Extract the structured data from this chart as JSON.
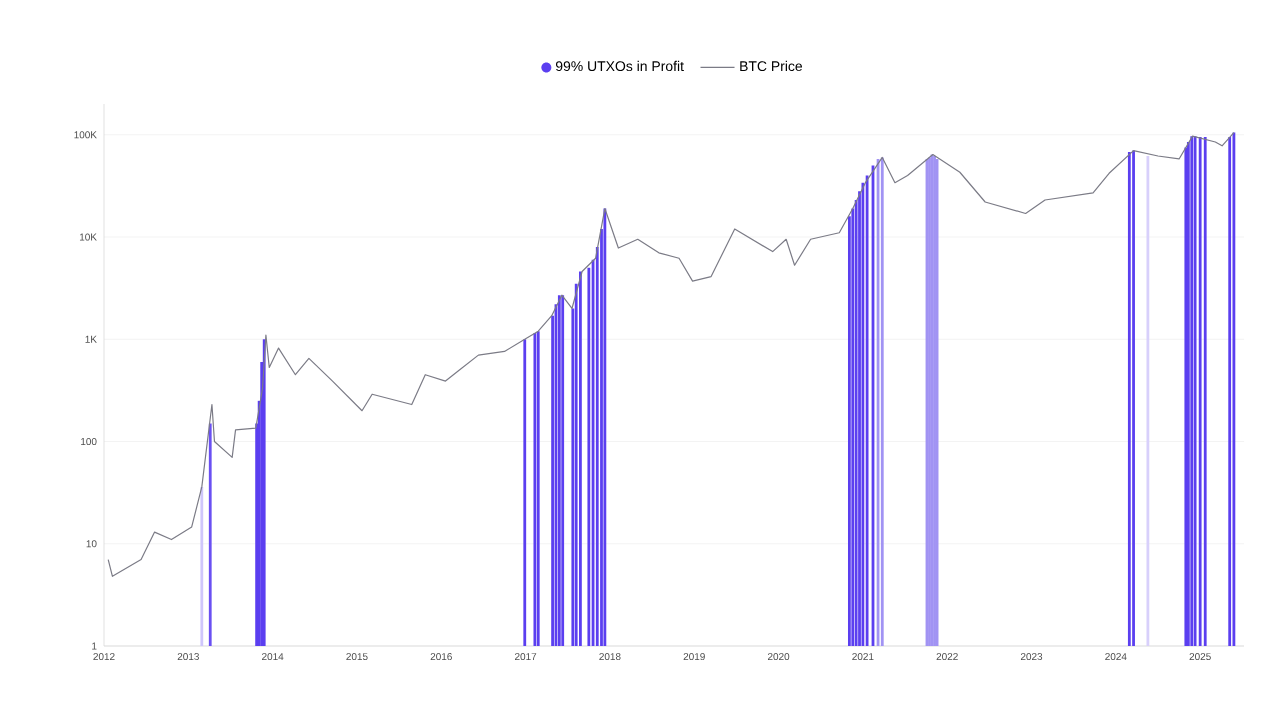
{
  "chart_data": {
    "type": "line",
    "log": true,
    "grid": "y",
    "legend": "top",
    "marker": "none",
    "line_style": "solid",
    "xlim": [
      2012,
      2025.52
    ],
    "xticks": [
      2012,
      2013,
      2014,
      2015,
      2016,
      2017,
      2018,
      2019,
      2020,
      2021,
      2022,
      2023,
      2024,
      2025
    ],
    "ylim": [
      1,
      200000
    ],
    "yticks": [
      1,
      10,
      100,
      {
        "value": 1000,
        "label": "1K"
      },
      {
        "value": 10000,
        "label": "10K"
      },
      {
        "value": 100000,
        "label": "100K"
      }
    ],
    "series": [
      {
        "name": "99% UTXOs in Profit",
        "type": "bar",
        "color": "#5b3ff0",
        "x": [
          2013.16,
          2013.26,
          2013.81,
          2013.84,
          2013.87,
          2013.9,
          2016.99,
          2017.11,
          2017.15,
          2017.32,
          2017.36,
          2017.4,
          2017.44,
          2017.56,
          2017.6,
          2017.65,
          2017.75,
          2017.8,
          2017.85,
          2017.9,
          2017.94,
          2020.84,
          2020.88,
          2020.92,
          2020.96,
          2021.0,
          2021.05,
          2021.12,
          2021.18,
          2021.23,
          2021.76,
          2021.79,
          2021.82,
          2021.85,
          2021.88,
          2024.16,
          2024.21,
          2024.38,
          2024.83,
          2024.86,
          2024.9,
          2024.94,
          2025.0,
          2025.06,
          2025.35,
          2025.4
        ],
        "values": [
          36,
          150,
          150,
          250,
          600,
          1000,
          1000,
          1150,
          1200,
          1700,
          2200,
          2700,
          2700,
          2000,
          3500,
          4600,
          5000,
          6000,
          8000,
          12000,
          19000,
          16000,
          19000,
          23000,
          28000,
          34000,
          40000,
          50000,
          58000,
          60000,
          58000,
          60000,
          64000,
          62000,
          58000,
          68000,
          70000,
          62000,
          75000,
          85000,
          97000,
          97000,
          95000,
          95000,
          95000,
          105000
        ],
        "colors": [
          "#cfc6fb",
          "#6a50f2",
          "#5b3ff0",
          "#5b3ff0",
          "#5b3ff0",
          "#5b3ff0",
          "#5b3ff0",
          "#5b3ff0",
          "#5b3ff0",
          "#5b3ff0",
          "#5b3ff0",
          "#5b3ff0",
          "#5b3ff0",
          "#5b3ff0",
          "#5b3ff0",
          "#5b3ff0",
          "#5b3ff0",
          "#5b3ff0",
          "#5b3ff0",
          "#5b3ff0",
          "#5b3ff0",
          "#5b3ff0",
          "#5b3ff0",
          "#5b3ff0",
          "#5b3ff0",
          "#5b3ff0",
          "#5b3ff0",
          "#5b3ff0",
          "#a193f3",
          "#a193f3",
          "#a193f3",
          "#a193f3",
          "#a193f3",
          "#a193f3",
          "#a193f3",
          "#5b3ff0",
          "#5b3ff0",
          "#d8d0fb",
          "#5b3ff0",
          "#5b3ff0",
          "#5b3ff0",
          "#5b3ff0",
          "#5b3ff0",
          "#5b3ff0",
          "#5b3ff0",
          "#5b3ff0"
        ]
      },
      {
        "name": "BTC Price",
        "color": "#7b7b86",
        "x": [
          2012.05,
          2012.1,
          2012.44,
          2012.6,
          2012.8,
          2013.04,
          2013.16,
          2013.28,
          2013.31,
          2013.52,
          2013.56,
          2013.8,
          2013.88,
          2013.92,
          2013.96,
          2014.07,
          2014.27,
          2014.43,
          2014.71,
          2015.06,
          2015.18,
          2015.65,
          2015.81,
          2016.05,
          2016.2,
          2016.44,
          2016.75,
          2016.99,
          2017.15,
          2017.31,
          2017.43,
          2017.55,
          2017.67,
          2017.83,
          2017.94,
          2018.1,
          2018.33,
          2018.58,
          2018.82,
          2018.98,
          2019.2,
          2019.48,
          2019.93,
          2020.09,
          2020.19,
          2020.38,
          2020.72,
          2020.88,
          2021.03,
          2021.23,
          2021.38,
          2021.53,
          2021.83,
          2022.15,
          2022.45,
          2022.93,
          2023.16,
          2023.73,
          2023.92,
          2024.21,
          2024.5,
          2024.75,
          2024.91,
          2025.18,
          2025.26,
          2025.4
        ],
        "values": [
          7,
          4.8,
          7,
          13,
          11,
          14.6,
          36,
          230,
          100,
          70,
          130,
          135,
          330,
          1100,
          530,
          820,
          450,
          650,
          390,
          200,
          290,
          230,
          450,
          390,
          490,
          700,
          760,
          1000,
          1200,
          1700,
          2700,
          2000,
          4600,
          6200,
          19000,
          7800,
          9500,
          7000,
          6200,
          3700,
          4100,
          12000,
          7200,
          9500,
          5300,
          9500,
          11000,
          19000,
          34000,
          60000,
          34000,
          40000,
          64000,
          43000,
          22000,
          17000,
          23000,
          27000,
          42000,
          70000,
          62000,
          58000,
          97000,
          85000,
          78000,
          105000
        ]
      }
    ]
  }
}
